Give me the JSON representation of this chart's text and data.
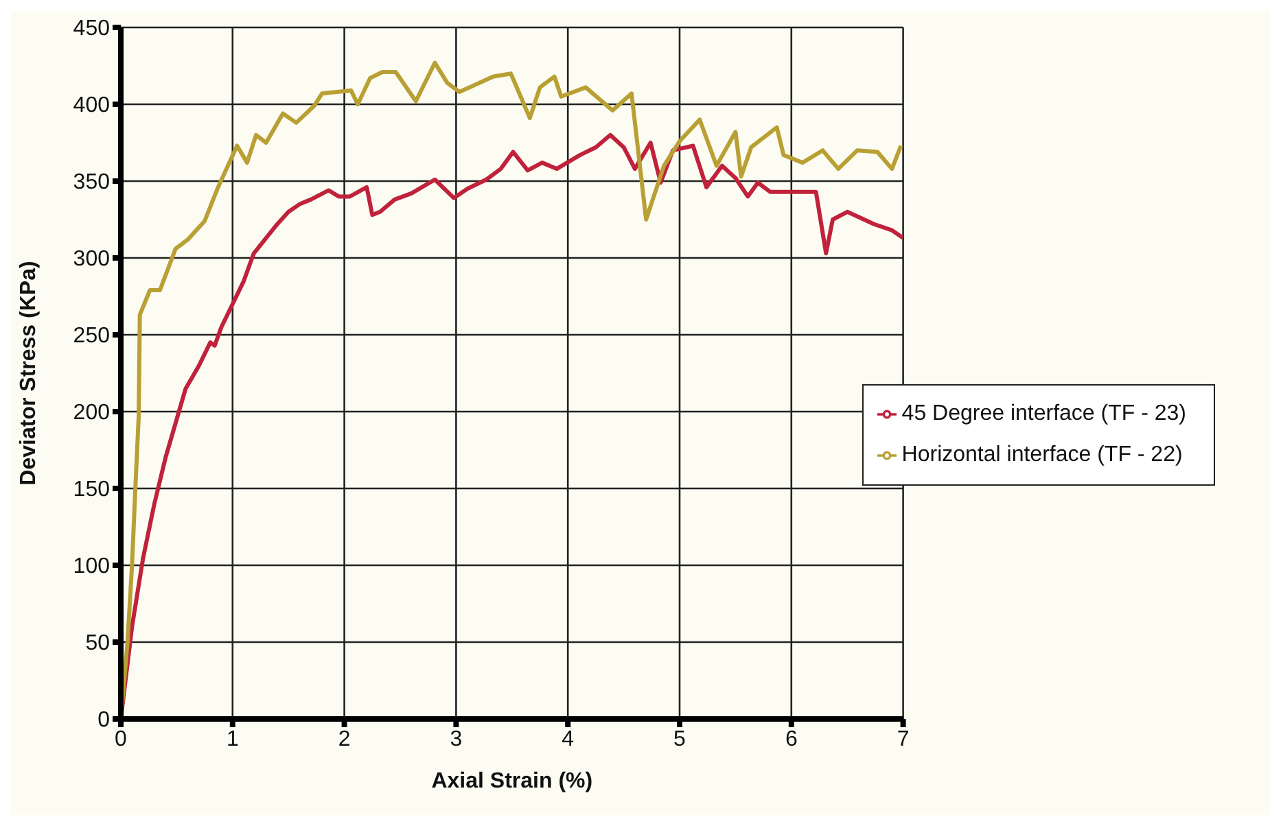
{
  "chart_data": {
    "type": "line",
    "xlabel": "Axial Strain (%)",
    "ylabel": "Deviator Stress (KPa)",
    "xlim": [
      0,
      7
    ],
    "xticks": [
      0,
      1,
      2,
      3,
      4,
      5,
      6,
      7
    ],
    "ylim": [
      0,
      450
    ],
    "yticks": [
      0,
      50,
      100,
      150,
      200,
      250,
      300,
      350,
      400,
      450
    ],
    "grid": true,
    "legend": "right",
    "marker": "none",
    "line_style": "solid",
    "series": [
      {
        "name": "45 Degree interface (TF - 23)",
        "color": "#c0223b",
        "x": [
          0,
          0.05,
          0.1,
          0.2,
          0.3,
          0.4,
          0.5,
          0.58,
          0.7,
          0.8,
          0.84,
          0.9,
          1.0,
          1.1,
          1.19,
          1.3,
          1.4,
          1.5,
          1.6,
          1.7,
          1.86,
          1.95,
          2.05,
          2.2,
          2.25,
          2.32,
          2.45,
          2.6,
          2.81,
          2.98,
          3.1,
          3.27,
          3.4,
          3.51,
          3.64,
          3.77,
          3.9,
          4.11,
          4.25,
          4.38,
          4.5,
          4.6,
          4.74,
          4.83,
          4.94,
          5.12,
          5.24,
          5.38,
          5.5,
          5.61,
          5.7,
          5.81,
          6.0,
          6.22,
          6.31,
          6.37,
          6.5,
          6.74,
          6.9,
          7.0
        ],
        "values": [
          0,
          30,
          60,
          105,
          140,
          170,
          195,
          215,
          230,
          245,
          243,
          255,
          270,
          285,
          303,
          313,
          322,
          330,
          335,
          338,
          344,
          340,
          340,
          346,
          328,
          330,
          338,
          342,
          351,
          339,
          345,
          351,
          358,
          369,
          357,
          362,
          358,
          367,
          372,
          380,
          372,
          358,
          375,
          349,
          370,
          373,
          346,
          360,
          352,
          340,
          349,
          343,
          343,
          343,
          303,
          325,
          330,
          322,
          318,
          313
        ]
      },
      {
        "name": "Horizontal interface (TF - 22)",
        "color": "#b8a034",
        "x": [
          0,
          0.03,
          0.06,
          0.1,
          0.13,
          0.16,
          0.17,
          0.26,
          0.35,
          0.49,
          0.6,
          0.75,
          0.87,
          1.04,
          1.13,
          1.21,
          1.3,
          1.45,
          1.57,
          1.73,
          1.8,
          2.06,
          2.12,
          2.23,
          2.34,
          2.46,
          2.64,
          2.81,
          2.92,
          3.03,
          3.33,
          3.49,
          3.66,
          3.75,
          3.88,
          3.94,
          4.16,
          4.4,
          4.57,
          4.7,
          4.86,
          5.0,
          5.18,
          5.33,
          5.5,
          5.55,
          5.64,
          5.87,
          5.93,
          6.1,
          6.28,
          6.42,
          6.59,
          6.77,
          6.9,
          6.98
        ],
        "values": [
          0,
          25,
          50,
          100,
          150,
          197,
          263,
          279,
          279,
          306,
          312,
          324,
          346,
          373,
          362,
          380,
          375,
          394,
          388,
          399,
          407,
          409,
          400,
          417,
          421,
          421,
          402,
          427,
          414,
          408,
          418,
          420,
          391,
          411,
          418,
          405,
          411,
          396,
          407,
          325,
          360,
          376,
          390,
          360,
          382,
          353,
          372,
          385,
          367,
          362,
          370,
          358,
          370,
          369,
          358,
          373
        ]
      }
    ]
  }
}
